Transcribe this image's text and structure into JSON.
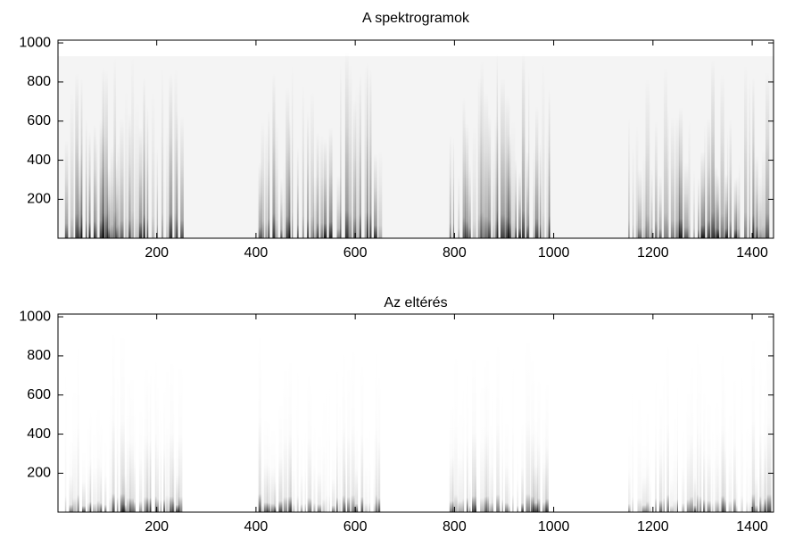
{
  "chart_data": [
    {
      "type": "heatmap",
      "title": "A spektrogramok",
      "xlim": [
        1,
        1443
      ],
      "ylim": [
        1,
        1014
      ],
      "xticks": [
        200,
        400,
        600,
        800,
        1000,
        1200,
        1400
      ],
      "yticks": [
        200,
        400,
        600,
        800,
        1000
      ],
      "intervals": [
        [
          15,
          250
        ],
        [
          405,
          650
        ],
        [
          790,
          990
        ],
        [
          1150,
          1430
        ]
      ]
    },
    {
      "type": "heatmap",
      "title": "Az eltérés",
      "xlim": [
        1,
        1443
      ],
      "ylim": [
        1,
        1014
      ],
      "xticks": [
        200,
        400,
        600,
        800,
        1000,
        1200,
        1400
      ],
      "yticks": [
        200,
        400,
        600,
        800,
        1000
      ],
      "intervals": [
        [
          15,
          250
        ],
        [
          405,
          650
        ],
        [
          790,
          990
        ],
        [
          1150,
          1430
        ]
      ]
    }
  ]
}
